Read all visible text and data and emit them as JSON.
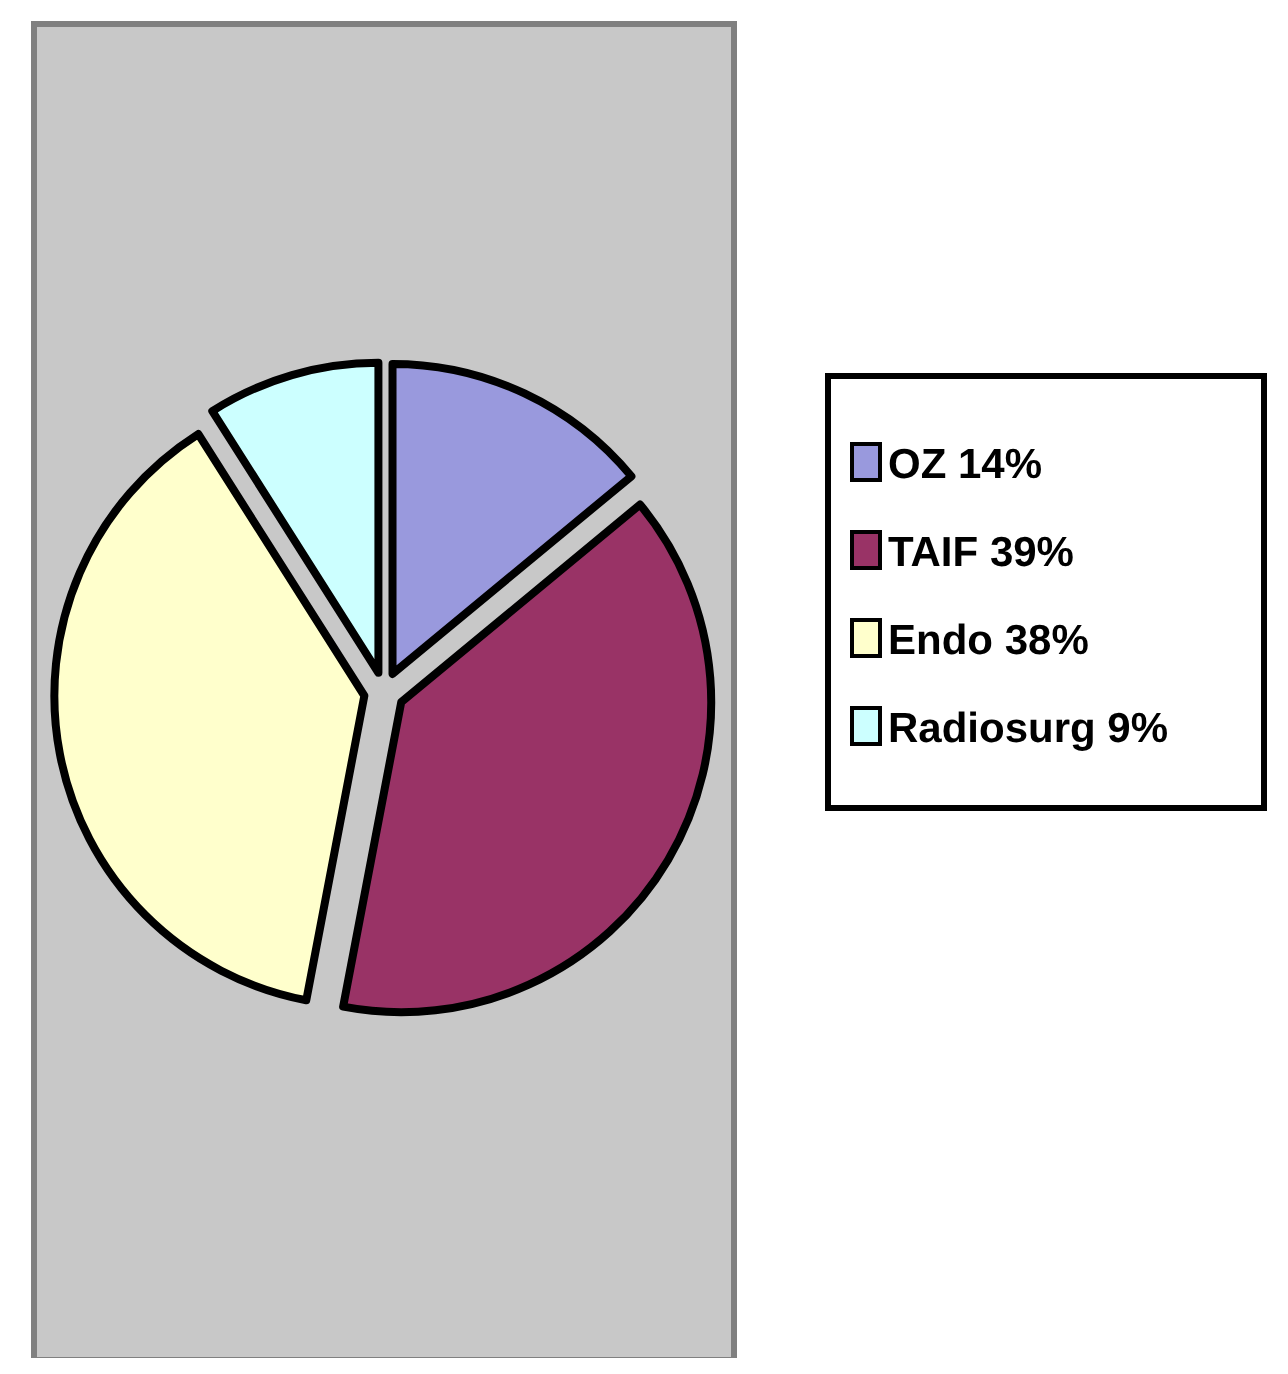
{
  "chart_data": {
    "type": "pie",
    "categories": [
      "OZ",
      "TAIF",
      "Endo",
      "Radiosurg"
    ],
    "values": [
      14,
      39,
      38,
      9
    ],
    "value_labels": [
      "14%",
      "39%",
      "38%",
      "9%"
    ],
    "colors": [
      "#9999dd",
      "#993366",
      "#ffffcc",
      "#ccffff"
    ],
    "legend": "right"
  }
}
